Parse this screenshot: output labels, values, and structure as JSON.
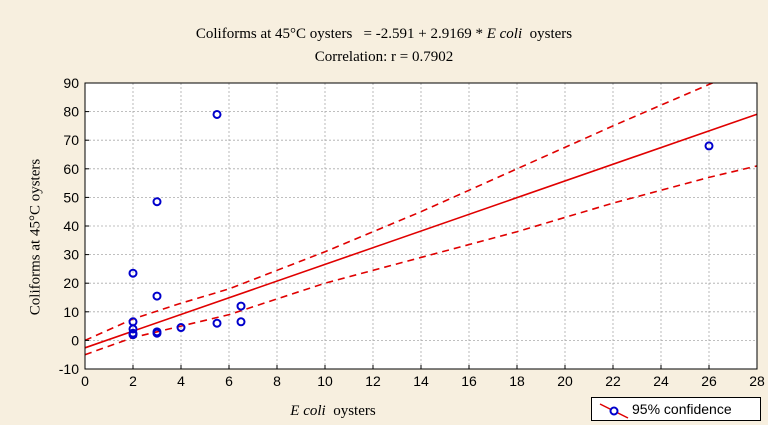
{
  "title_parts": {
    "yname": "Coliforms at 45°C oysters",
    "equation_mid": "= -2.591 + 2.9169 *",
    "xname_italic": "E coli",
    "xname_suffix": "oysters",
    "correlation": "Correlation: r = 0.7902"
  },
  "axis_text": {
    "ylabel": "Coliforms at 45°C oysters",
    "xlabel_italic": "E coli",
    "xlabel_suffix": "oysters"
  },
  "legend": {
    "label": "95% confidence"
  },
  "colors": {
    "background": "#f7efdf",
    "plot_area": "#ffffff",
    "grid": "#aaaaaa",
    "points": "#0000cc",
    "fit": "#e00000"
  },
  "chart_data": {
    "type": "scatter",
    "title": "Coliforms at 45°C oysters = -2.591 + 2.9169 * E coli oysters",
    "subtitle": "Correlation: r = 0.7902",
    "xlabel": "E coli oysters",
    "ylabel": "Coliforms at 45°C oysters",
    "xlim": [
      0,
      28
    ],
    "ylim": [
      -10,
      90
    ],
    "xticks": [
      0,
      2,
      4,
      6,
      8,
      10,
      12,
      14,
      16,
      18,
      20,
      22,
      24,
      26,
      28
    ],
    "yticks": [
      -10,
      0,
      10,
      20,
      30,
      40,
      50,
      60,
      70,
      80,
      90
    ],
    "grid": true,
    "legend_position": "bottom-right",
    "points": [
      {
        "x": 2,
        "y": 23.5
      },
      {
        "x": 2,
        "y": 6.5
      },
      {
        "x": 2,
        "y": 4
      },
      {
        "x": 2,
        "y": 2.5
      },
      {
        "x": 2,
        "y": 2
      },
      {
        "x": 3,
        "y": 48.5
      },
      {
        "x": 3,
        "y": 15.5
      },
      {
        "x": 3,
        "y": 3
      },
      {
        "x": 3,
        "y": 2.5
      },
      {
        "x": 4,
        "y": 4.5
      },
      {
        "x": 5.5,
        "y": 79
      },
      {
        "x": 5.5,
        "y": 6
      },
      {
        "x": 6.5,
        "y": 12
      },
      {
        "x": 6.5,
        "y": 6.5
      },
      {
        "x": 26,
        "y": 68
      }
    ],
    "regression": {
      "intercept": -2.591,
      "slope": 2.9169
    },
    "confidence_upper": [
      [
        0,
        0
      ],
      [
        2,
        7.5
      ],
      [
        4,
        13
      ],
      [
        6,
        18
      ],
      [
        10,
        31
      ],
      [
        14,
        45
      ],
      [
        18,
        60
      ],
      [
        22,
        75
      ],
      [
        26,
        89.5
      ],
      [
        27,
        93
      ]
    ],
    "confidence_lower": [
      [
        0,
        -5
      ],
      [
        2,
        1
      ],
      [
        6,
        9
      ],
      [
        10,
        20
      ],
      [
        14,
        29
      ],
      [
        18,
        38
      ],
      [
        22,
        48
      ],
      [
        26,
        57
      ],
      [
        28,
        61
      ]
    ]
  }
}
